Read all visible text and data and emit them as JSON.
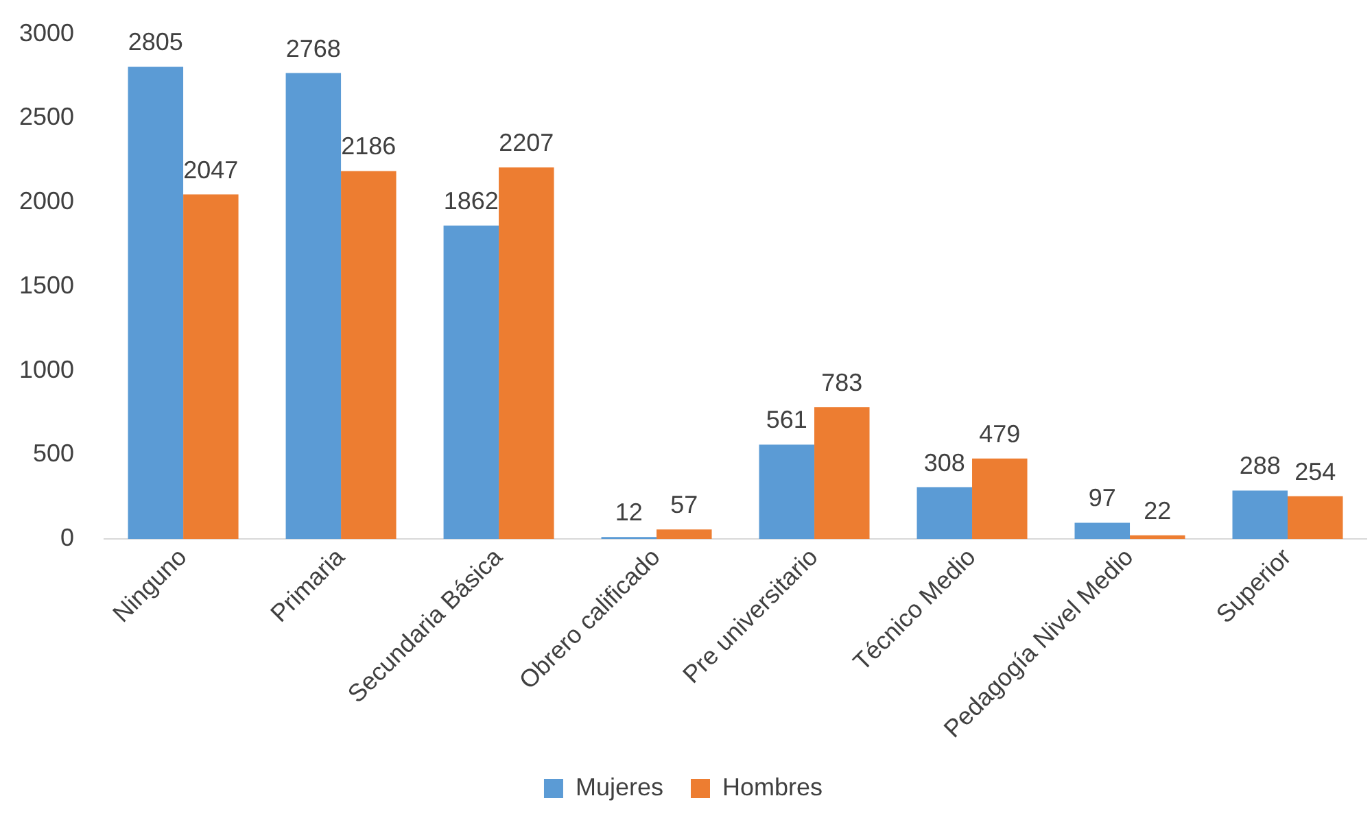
{
  "chart_data": {
    "type": "bar",
    "categories": [
      "Ninguno",
      "Primaria",
      "Secundaria Básica",
      "Obrero calificado",
      "Pre universitario",
      "Técnico Medio",
      "Pedagogía Nivel Medio",
      "Superior"
    ],
    "series": [
      {
        "name": "Mujeres",
        "color": "#5b9bd5",
        "values": [
          2805,
          2768,
          1862,
          12,
          561,
          308,
          97,
          288
        ]
      },
      {
        "name": "Hombres",
        "color": "#ed7d31",
        "values": [
          2047,
          2186,
          2207,
          57,
          783,
          479,
          22,
          254
        ]
      }
    ],
    "ylim": [
      0,
      3000
    ],
    "yticks": [
      0,
      500,
      1000,
      1500,
      2000,
      2500,
      3000
    ],
    "grid": false,
    "legend": "bottom",
    "data_labels": true
  }
}
